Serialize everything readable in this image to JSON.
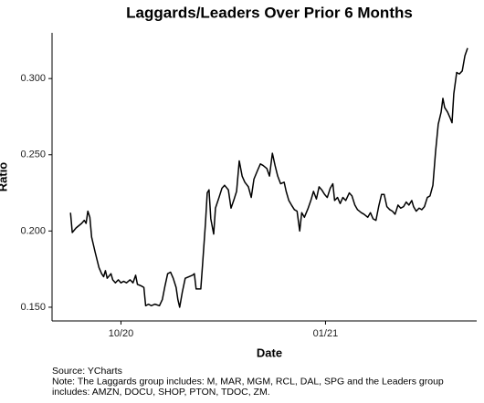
{
  "chart_data": {
    "type": "line",
    "title": "Laggards/Leaders Over Prior 6 Months",
    "xlabel": "Date",
    "ylabel": "Ratio",
    "notes": [
      "Source: YCharts",
      "Note: The Laggards group includes: M, MAR, MGM, RCL, DAL, SPG and the Leaders group",
      "includes: AMZN, DOCU, SHOP, PTON, TDOC, ZM."
    ],
    "x": [
      -22.7,
      -21.9,
      -20.2,
      -17.7,
      -16.5,
      -15.7,
      -14.9,
      -14.0,
      -13.2,
      -11.6,
      -9.9,
      -8.7,
      -7.8,
      -7.0,
      -6.2,
      -4.5,
      -3.7,
      -2.5,
      -1.2,
      0,
      1.2,
      2.5,
      4.1,
      5.4,
      6.6,
      7.4,
      9.1,
      10.3,
      11.1,
      12.4,
      13.6,
      15.3,
      17.3,
      18.6,
      19.8,
      21.0,
      22.3,
      23.5,
      24.8,
      25.6,
      26.4,
      27.6,
      28.9,
      30.5,
      32.2,
      33.0,
      33.8,
      35.9,
      36.7,
      38.0,
      38.8,
      39.6,
      40.4,
      41.7,
      42.5,
      44.1,
      45.4,
      46.6,
      48.3,
      49.5,
      50.7,
      52.0,
      53.2,
      54.5,
      55.7,
      57.3,
      58.6,
      59.8,
      61.5,
      62.7,
      63.9,
      65.6,
      66.8,
      68.1,
      69.3,
      70.5,
      71.8,
      73.4,
      74.3,
      75.5,
      76.7,
      78.0,
      79.2,
      80.4,
      81.3,
      82.5,
      84.2,
      85.4,
      86.6,
      87.9,
      89.1,
      90.3,
      91.6,
      92.8,
      94.1,
      95.3,
      96.1,
      97.4,
      98.6,
      99.8,
      101.1,
      102.7,
      103.9,
      105.2,
      106.4,
      108.1,
      109.3,
      111.0,
      112.2,
      113.4,
      114.7,
      115.9,
      117.2,
      118.4,
      119.6,
      120.9,
      122.1,
      123.3,
      124.6,
      125.8,
      127.1,
      128.3,
      129.5,
      130.8,
      131.6,
      132.8,
      134.1,
      135.3,
      136.5,
      137.8,
      139.0,
      140.3,
      141.5,
      142.7,
      144.0,
      144.8,
      145.6,
      146.9,
      148.1,
      148.9,
      149.7,
      151.0,
      152.2,
      153.5,
      154.7,
      155.9
    ],
    "series": [
      {
        "color": "#000000",
        "values": [
          0.212,
          0.199,
          0.202,
          0.205,
          0.207,
          0.205,
          0.213,
          0.209,
          0.196,
          0.186,
          0.176,
          0.172,
          0.17,
          0.174,
          0.169,
          0.172,
          0.168,
          0.166,
          0.168,
          0.166,
          0.167,
          0.166,
          0.168,
          0.166,
          0.171,
          0.165,
          0.164,
          0.163,
          0.151,
          0.152,
          0.151,
          0.152,
          0.151,
          0.155,
          0.164,
          0.172,
          0.173,
          0.169,
          0.163,
          0.155,
          0.15,
          0.16,
          0.169,
          0.17,
          0.171,
          0.172,
          0.162,
          0.162,
          0.178,
          0.205,
          0.225,
          0.227,
          0.208,
          0.198,
          0.215,
          0.222,
          0.228,
          0.23,
          0.227,
          0.215,
          0.22,
          0.226,
          0.246,
          0.236,
          0.232,
          0.229,
          0.222,
          0.234,
          0.24,
          0.244,
          0.243,
          0.241,
          0.236,
          0.251,
          0.243,
          0.236,
          0.231,
          0.232,
          0.226,
          0.22,
          0.217,
          0.214,
          0.213,
          0.2,
          0.212,
          0.209,
          0.215,
          0.22,
          0.226,
          0.221,
          0.229,
          0.227,
          0.224,
          0.222,
          0.228,
          0.231,
          0.22,
          0.222,
          0.218,
          0.222,
          0.22,
          0.225,
          0.223,
          0.217,
          0.214,
          0.212,
          0.211,
          0.209,
          0.212,
          0.208,
          0.207,
          0.216,
          0.224,
          0.224,
          0.216,
          0.214,
          0.213,
          0.211,
          0.217,
          0.215,
          0.216,
          0.219,
          0.217,
          0.22,
          0.216,
          0.213,
          0.215,
          0.214,
          0.216,
          0.222,
          0.223,
          0.23,
          0.252,
          0.27,
          0.278,
          0.287,
          0.281,
          0.278,
          0.274,
          0.271,
          0.29,
          0.304,
          0.303,
          0.305,
          0.315,
          0.32
        ]
      }
    ],
    "xlim": [
      -31,
      160
    ],
    "xticks": [
      {
        "value": 0,
        "label": "10/20"
      },
      {
        "value": 92,
        "label": "01/21"
      }
    ],
    "ylim": [
      0.141,
      0.33
    ],
    "yticks": [
      {
        "value": 0.15,
        "label": "0.150"
      },
      {
        "value": 0.2,
        "label": "0.200"
      },
      {
        "value": 0.25,
        "label": "0.250"
      },
      {
        "value": 0.3,
        "label": "0.300"
      }
    ],
    "grid": false
  }
}
